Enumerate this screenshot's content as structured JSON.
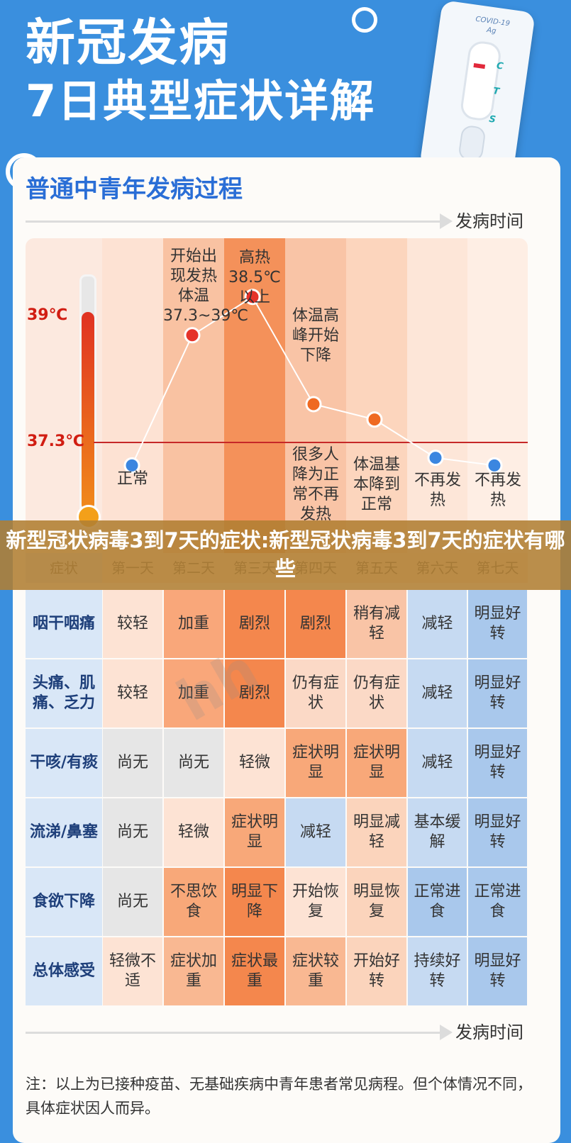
{
  "header": {
    "title_line1": "新冠发病",
    "title_line2": "7日典型症状详解"
  },
  "test_kit": {
    "label": "COVID-19 Ag",
    "marks": [
      "C",
      "T",
      "S"
    ],
    "icon": "antigen-test-kit-icon"
  },
  "section": {
    "title": "普通中青年发病过程",
    "axis_label": "发病时间",
    "axis_label_bottom": "发病时间"
  },
  "temperature": {
    "high_label": "39℃",
    "normal_label": "37.3℃"
  },
  "chart_data": {
    "type": "line",
    "x": [
      "第一天",
      "第二天",
      "第三天",
      "第四天",
      "第五天",
      "第六天",
      "第七天"
    ],
    "series": [
      {
        "values": [
          37.0,
          38.7,
          39.2,
          37.8,
          37.6,
          37.1,
          37.0
        ]
      }
    ],
    "annotations": [
      "正常",
      "开始出现发热体温37.3~39℃",
      "高热38.5℃以上",
      "体温高峰开始下降",
      "很多人降为正常不再发热",
      "体温基本降到正常",
      "不再发热",
      "不再发热"
    ]
  },
  "notes": {
    "day1": "正常",
    "day2": "开始出现发热体温37.3~39℃",
    "day3": "高热38.5℃以上",
    "day4_top": "体温高峰开始下降",
    "day4_bottom": "很多人降为正常不再发热",
    "day5": "体温基本降到正常",
    "day6": "不再发热",
    "day7": "不再发热"
  },
  "table": {
    "header": [
      "症状",
      "第一天",
      "第二天",
      "第三天",
      "第四天",
      "第五天",
      "第六天",
      "第七天"
    ],
    "rows": [
      {
        "symptom": "咽干咽痛",
        "values": [
          "较轻",
          "加重",
          "剧烈",
          "剧烈",
          "稍有减轻",
          "减轻",
          "明显好转"
        ]
      },
      {
        "symptom": "头痛、肌痛、乏力",
        "values": [
          "较轻",
          "加重",
          "剧烈",
          "仍有症状",
          "仍有症状",
          "减轻",
          "明显好转"
        ]
      },
      {
        "symptom": "干咳/有痰",
        "values": [
          "尚无",
          "尚无",
          "轻微",
          "症状明显",
          "症状明显",
          "减轻",
          "明显好转"
        ]
      },
      {
        "symptom": "流涕/鼻塞",
        "values": [
          "尚无",
          "轻微",
          "症状明显",
          "减轻",
          "明显减轻",
          "基本缓解",
          "明显好转"
        ]
      },
      {
        "symptom": "食欲下降",
        "values": [
          "尚无",
          "不思饮食",
          "明显下降",
          "开始恢复",
          "明显恢复",
          "正常进食",
          "正常进食"
        ]
      },
      {
        "symptom": "总体感受",
        "values": [
          "轻微不适",
          "症状加重",
          "症状最重",
          "症状较重",
          "开始好转",
          "持续好转",
          "明显好转"
        ]
      }
    ]
  },
  "banner": {
    "text": "新型冠状病毒3到7天的症状:新型冠状病毒3到7天的症状有哪些"
  },
  "footnote": "注：以上为已接种疫苗、无基础疾病中青年患者常见病程。但个体情况不同，具体症状因人而异。",
  "colors": {
    "background": "#3a8fde",
    "accent_blue": "#2a6ed6",
    "fever_red": "#e5332a",
    "fever_orange": "#f08a1b"
  }
}
